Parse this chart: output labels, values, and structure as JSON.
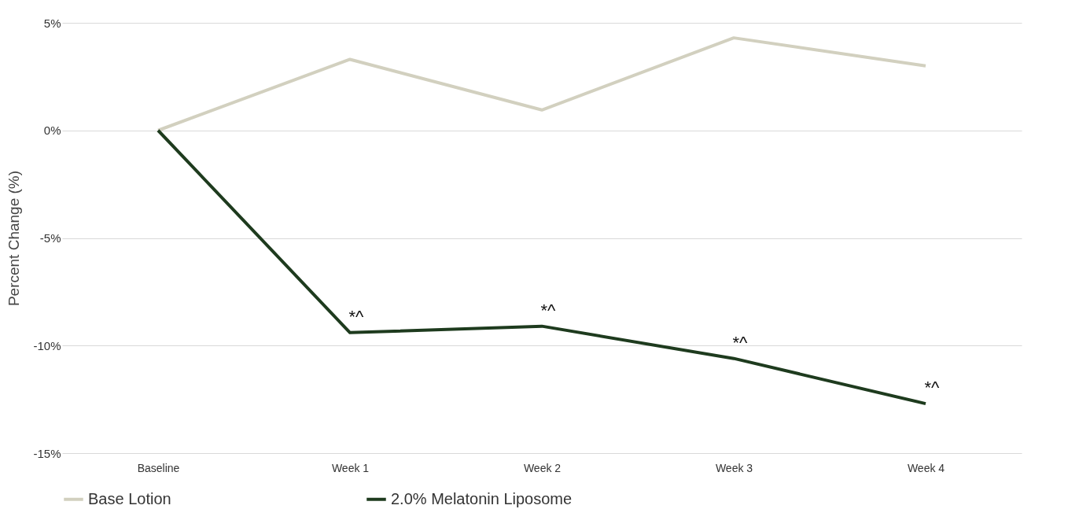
{
  "chart_data": {
    "type": "line",
    "ylabel": "Percent Change (%)",
    "categories": [
      "Baseline",
      "Week 1",
      "Week 2",
      "Week 3",
      "Week 4"
    ],
    "series": [
      {
        "name": "Base Lotion",
        "color": "#d2d0bf",
        "values": [
          0,
          3.3,
          0.95,
          4.3,
          3.0
        ]
      },
      {
        "name": "2.0% Melatonin Liposome",
        "color": "#1e3b1e",
        "values": [
          0,
          -9.4,
          -9.1,
          -10.6,
          -12.7
        ]
      }
    ],
    "ylim": [
      -15,
      5
    ],
    "yticks": [
      {
        "value": -15,
        "label": "-15%"
      },
      {
        "value": -10,
        "label": "-10%"
      },
      {
        "value": -5,
        "label": "-5%"
      },
      {
        "value": 0,
        "label": "0%"
      },
      {
        "value": 5,
        "label": "5%"
      }
    ],
    "grid": "y",
    "legend": "bottom",
    "marker": "none",
    "line_style": "solid",
    "annotations": [
      {
        "text": "*^",
        "x": "Week 1",
        "y": -9.4
      },
      {
        "text": "*^",
        "x": "Week 2",
        "y": -9.1
      },
      {
        "text": "*^",
        "x": "Week 3",
        "y": -10.6
      },
      {
        "text": "*^",
        "x": "Week 4",
        "y": -12.7
      }
    ]
  }
}
